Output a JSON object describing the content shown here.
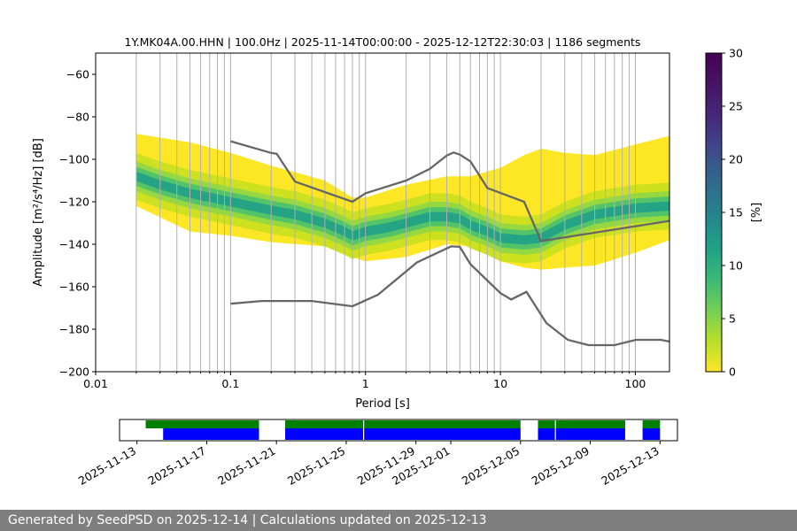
{
  "chart_data": [
    {
      "type": "heatmap",
      "title": "1Y.MK04A.00.HHN | 100.0Hz | 2025-11-14T00:00:00 - 2025-12-12T22:30:03 | 1186 segments",
      "xlabel": "Period [s]",
      "ylabel": "Amplitude [m²/s⁴/Hz] [dB]",
      "xscale": "log",
      "xlim": [
        0.01,
        179
      ],
      "ylim": [
        -200,
        -50
      ],
      "x_ticks": [
        0.01,
        0.1,
        1,
        10,
        100
      ],
      "x_tick_labels": [
        "0.01",
        "0.1",
        "1",
        "10",
        "100"
      ],
      "y_ticks": [
        -200,
        -180,
        -160,
        -140,
        -120,
        -100,
        -80,
        -60
      ],
      "y_tick_labels": [
        "−200",
        "−180",
        "−160",
        "−140",
        "−120",
        "−100",
        "−80",
        "−60"
      ],
      "grid": true,
      "colormap": "viridis_r",
      "colorbar": {
        "label": "[%]",
        "range": [
          0,
          30
        ],
        "ticks": [
          0,
          5,
          10,
          15,
          20,
          25,
          30
        ],
        "tick_labels": [
          "0",
          "5",
          "10",
          "15",
          "20",
          "25",
          "30"
        ]
      },
      "psd_mode_curve": {
        "periods": [
          0.02,
          0.03,
          0.05,
          0.1,
          0.2,
          0.3,
          0.5,
          0.7,
          0.8,
          1.0,
          1.5,
          2.0,
          3.0,
          4.0,
          5.0,
          6.0,
          8.0,
          10,
          15,
          20,
          30,
          50,
          100,
          179
        ],
        "db": [
          -108,
          -112,
          -116,
          -120,
          -124,
          -126,
          -130,
          -134,
          -136,
          -134,
          -132,
          -130,
          -127,
          -127,
          -128,
          -131,
          -134,
          -137,
          -138,
          -137,
          -131,
          -126,
          -123,
          -122
        ]
      },
      "density_band": {
        "periods": [
          0.02,
          0.05,
          0.1,
          0.2,
          0.5,
          0.8,
          1.0,
          2.0,
          4.0,
          6.0,
          10,
          15,
          20,
          30,
          50,
          100,
          179
        ],
        "upper_db": [
          -88,
          -92,
          -97,
          -103,
          -110,
          -118,
          -118,
          -112,
          -108,
          -108,
          -104,
          -98,
          -95,
          -97,
          -98,
          -93,
          -89
        ],
        "lower_db": [
          -122,
          -134,
          -136,
          -139,
          -141,
          -146,
          -148,
          -146,
          -140,
          -141,
          -148,
          -151,
          -152,
          -151,
          -150,
          -144,
          -138
        ]
      },
      "series": [
        {
          "periods": [
            0.1,
            0.2,
            0.22,
            0.3,
            0.8,
            1.0,
            2.0,
            3.0,
            4.0,
            4.5,
            5.0,
            6.0,
            8.0,
            15.0,
            20.0,
            179.0
          ],
          "db": [
            -91.5,
            -97.0,
            -97.4,
            -110.5,
            -120.0,
            -116.0,
            -110.0,
            -104.5,
            -98.2,
            -96.8,
            -97.8,
            -101.0,
            -113.5,
            -120.0,
            -138.5,
            -129.0
          ]
        },
        {
          "periods": [
            0.1,
            0.17,
            0.4,
            0.8,
            1.24,
            2.4,
            4.3,
            5.0,
            6.0,
            10.0,
            12.0,
            15.6,
            21.9,
            31.6,
            45.0,
            70.0,
            101.0,
            154.0,
            179.0
          ],
          "db": [
            -168.0,
            -166.7,
            -166.7,
            -169.2,
            -163.7,
            -148.6,
            -141.0,
            -141.2,
            -149.4,
            -163.0,
            -166.0,
            -162.4,
            -177.1,
            -185.0,
            -187.5,
            -187.5,
            -185.0,
            -185.0,
            -185.8
          ]
        }
      ]
    },
    {
      "type": "timeline",
      "date_ticks": [
        "2025-11-13",
        "2025-11-17",
        "2025-11-21",
        "2025-11-25",
        "2025-11-29",
        "2025-12-01",
        "2025-12-05",
        "2025-12-09",
        "2025-12-13"
      ],
      "range": [
        "2025-11-12",
        "2025-12-14"
      ],
      "green_bars": [
        [
          "2025-11-13T12:00",
          "2025-11-20T00:00"
        ],
        [
          "2025-11-21T12:00",
          "2025-12-05T00:00"
        ],
        [
          "2025-12-06T00:00",
          "2025-12-11T00:00"
        ],
        [
          "2025-12-12T00:00",
          "2025-12-13T00:00"
        ]
      ],
      "blue_bars": [
        [
          "2025-11-14T12:00",
          "2025-11-20T00:00"
        ],
        [
          "2025-11-21T12:00",
          "2025-12-05T00:00"
        ],
        [
          "2025-12-06T00:00",
          "2025-12-11T00:00"
        ],
        [
          "2025-12-12T00:00",
          "2025-12-13T00:00"
        ]
      ],
      "gaps": [
        "2025-11-26T00:00",
        "2025-12-07T00:00"
      ]
    }
  ],
  "footer": {
    "text": "Generated by SeedPSD on 2025-12-14 | Calculations updated on 2025-12-13"
  }
}
